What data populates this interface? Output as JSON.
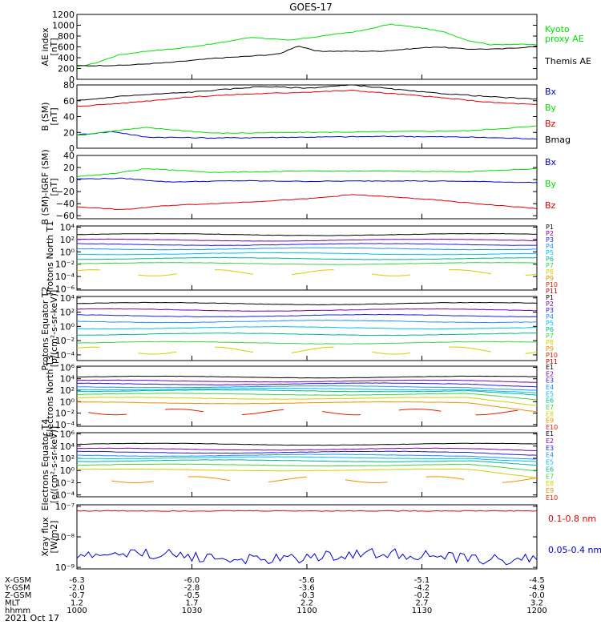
{
  "title": "GOES-17",
  "colors": {
    "black": "#000000",
    "green": "#00e000",
    "red": "#e00000",
    "blue": "#0000d0",
    "P1": "#000000",
    "P2": "#8000a0",
    "P3": "#2020e0",
    "P4": "#2090ff",
    "P5": "#00c0f0",
    "P6": "#00b890",
    "P7": "#40d040",
    "P8": "#d0d000",
    "P9": "#f09000",
    "P10": "#e02000",
    "P11": "#b00000"
  },
  "footer": {
    "rows": [
      {
        "label": "X-GSM",
        "values": [
          "-6.3",
          "-6.0",
          "-5.6",
          "-5.1",
          "-4.5"
        ]
      },
      {
        "label": "Y-GSM",
        "values": [
          "-2.0",
          "-2.8",
          "-3.6",
          "-4.2",
          "-4.9"
        ]
      },
      {
        "label": "Z-GSM",
        "values": [
          "-0.7",
          "-0.5",
          "-0.3",
          "-0.2",
          "-0.0"
        ]
      },
      {
        "label": "MLT",
        "values": [
          "1.2",
          "1.7",
          "2.2",
          "2.7",
          "3.2"
        ]
      },
      {
        "label": "hhmm",
        "values": [
          "1000",
          "1030",
          "1100",
          "1130",
          "1200"
        ]
      }
    ],
    "date": "2021 Oct 17"
  },
  "chart_data": [
    {
      "type": "line",
      "ylabel": "AE index [nT]",
      "ylim": [
        0,
        1200
      ],
      "ytick_labels": [
        "1200",
        "1000",
        "800",
        "600",
        "400",
        "200",
        "0"
      ],
      "x_range_hhmm": [
        "1000",
        "1200"
      ],
      "series": [
        {
          "name": "Kyoto proxy AE",
          "legend": "Kyoto\nproxy AE",
          "color": "green",
          "knots": [
            [
              0,
              230
            ],
            [
              0.04,
              300
            ],
            [
              0.09,
              450
            ],
            [
              0.15,
              520
            ],
            [
              0.22,
              570
            ],
            [
              0.3,
              660
            ],
            [
              0.38,
              780
            ],
            [
              0.46,
              720
            ],
            [
              0.55,
              820
            ],
            [
              0.62,
              900
            ],
            [
              0.68,
              1020
            ],
            [
              0.75,
              950
            ],
            [
              0.8,
              870
            ],
            [
              0.85,
              720
            ],
            [
              0.9,
              640
            ],
            [
              0.95,
              650
            ],
            [
              1,
              640
            ]
          ]
        },
        {
          "name": "Themis AE",
          "legend": "Themis AE",
          "color": "black",
          "knots": [
            [
              0,
              250
            ],
            [
              0.1,
              260
            ],
            [
              0.2,
              310
            ],
            [
              0.3,
              390
            ],
            [
              0.38,
              430
            ],
            [
              0.44,
              470
            ],
            [
              0.48,
              620
            ],
            [
              0.52,
              520
            ],
            [
              0.58,
              520
            ],
            [
              0.66,
              520
            ],
            [
              0.72,
              560
            ],
            [
              0.78,
              600
            ],
            [
              0.85,
              560
            ],
            [
              0.92,
              560
            ],
            [
              1,
              610
            ]
          ]
        }
      ]
    },
    {
      "type": "line",
      "ylabel": "B (SM) [nT]",
      "ylim": [
        0,
        80
      ],
      "ytick_labels": [
        "80",
        "60",
        "40",
        "20",
        "0"
      ],
      "series": [
        {
          "name": "Bx",
          "color": "blue",
          "knots": [
            [
              0,
              17
            ],
            [
              0.08,
              21
            ],
            [
              0.15,
              14
            ],
            [
              0.3,
              13
            ],
            [
              0.5,
              14
            ],
            [
              0.7,
              15
            ],
            [
              0.85,
              14
            ],
            [
              1,
              12
            ]
          ]
        },
        {
          "name": "By",
          "color": "green",
          "knots": [
            [
              0,
              16
            ],
            [
              0.08,
              22
            ],
            [
              0.15,
              26
            ],
            [
              0.3,
              19
            ],
            [
              0.5,
              20
            ],
            [
              0.7,
              21
            ],
            [
              0.85,
              22
            ],
            [
              1,
              28
            ]
          ]
        },
        {
          "name": "Bz",
          "color": "red",
          "knots": [
            [
              0,
              53
            ],
            [
              0.1,
              57
            ],
            [
              0.25,
              65
            ],
            [
              0.35,
              68
            ],
            [
              0.45,
              70
            ],
            [
              0.6,
              73
            ],
            [
              0.75,
              66
            ],
            [
              0.9,
              58
            ],
            [
              1,
              55
            ]
          ]
        },
        {
          "name": "Bmag",
          "color": "black",
          "knots": [
            [
              0,
              60
            ],
            [
              0.1,
              66
            ],
            [
              0.25,
              71
            ],
            [
              0.4,
              78
            ],
            [
              0.5,
              76
            ],
            [
              0.6,
              80
            ],
            [
              0.75,
              71
            ],
            [
              0.9,
              65
            ],
            [
              1,
              62
            ]
          ]
        }
      ]
    },
    {
      "type": "line",
      "ylabel": "B (SM)-IGRF (SM) [nT]",
      "ylim": [
        -65,
        40
      ],
      "yticks": [
        40,
        20,
        0,
        -20,
        -40,
        -60
      ],
      "ytick_labels": [
        "40",
        "20",
        "0",
        "−20",
        "−40",
        "−60"
      ],
      "series": [
        {
          "name": "Bx",
          "color": "blue",
          "knots": [
            [
              0,
              1
            ],
            [
              0.1,
              2
            ],
            [
              0.2,
              -4
            ],
            [
              0.35,
              -2
            ],
            [
              0.5,
              -3
            ],
            [
              0.7,
              -2
            ],
            [
              0.85,
              -3
            ],
            [
              1,
              -5
            ]
          ]
        },
        {
          "name": "By",
          "color": "green",
          "knots": [
            [
              0,
              5
            ],
            [
              0.08,
              10
            ],
            [
              0.15,
              18
            ],
            [
              0.3,
              12
            ],
            [
              0.5,
              14
            ],
            [
              0.7,
              14
            ],
            [
              0.85,
              13
            ],
            [
              1,
              18
            ]
          ]
        },
        {
          "name": "Bz",
          "color": "red",
          "knots": [
            [
              0,
              -45
            ],
            [
              0.1,
              -50
            ],
            [
              0.2,
              -43
            ],
            [
              0.35,
              -38
            ],
            [
              0.5,
              -32
            ],
            [
              0.6,
              -25
            ],
            [
              0.75,
              -32
            ],
            [
              0.9,
              -42
            ],
            [
              1,
              -48
            ]
          ]
        }
      ]
    },
    {
      "type": "line",
      "scale": "log",
      "ylabel": "Protons North T1",
      "ylim": [
        -6.2,
        4.2
      ],
      "yticks": [
        4,
        2,
        0,
        -2,
        -4,
        -6
      ],
      "ytick_labels": [
        "10⁴",
        "10²",
        "10⁰",
        "10⁻²",
        "10⁻⁴",
        "10⁻⁶"
      ],
      "channels": [
        "P1",
        "P2",
        "P3",
        "P4",
        "P5",
        "P6",
        "P7",
        "P8",
        "P9",
        "P10",
        "P11"
      ],
      "series": [
        {
          "name": "P1",
          "log_level": 2.8
        },
        {
          "name": "P2",
          "log_level": 1.9
        },
        {
          "name": "P3",
          "log_level": 1.2
        },
        {
          "name": "P4",
          "log_level": 0.5
        },
        {
          "name": "P5",
          "log_level": -0.3
        },
        {
          "name": "P6",
          "log_level": -1.1
        },
        {
          "name": "P7",
          "log_level": -1.9
        },
        {
          "name": "P8",
          "log_level": -3.4,
          "broken": true
        }
      ]
    },
    {
      "type": "line",
      "scale": "log",
      "ylabel": "Protons Equator T2 [p/(cm²-s-sr-keV)]",
      "ylim": [
        -4.8,
        4.2
      ],
      "yticks": [
        4,
        2,
        0,
        -2,
        -4
      ],
      "ytick_labels": [
        "10⁴",
        "10²",
        "10⁰",
        "10⁻²",
        "10⁻⁴"
      ],
      "channels": [
        "P1",
        "P2",
        "P3",
        "P4",
        "P5",
        "P6",
        "P7",
        "P8",
        "P9",
        "P10",
        "P11"
      ],
      "series": [
        {
          "name": "P1",
          "log_level": 3.2
        },
        {
          "name": "P2",
          "log_level": 2.3
        },
        {
          "name": "P3",
          "log_level": 1.5
        },
        {
          "name": "P4",
          "log_level": 0.7
        },
        {
          "name": "P5",
          "log_level": -0.2
        },
        {
          "name": "P6",
          "log_level": -1.1
        },
        {
          "name": "P7",
          "log_level": -2.3
        },
        {
          "name": "P8",
          "log_level": -3.4,
          "broken": true
        }
      ]
    },
    {
      "type": "line",
      "scale": "log",
      "ylabel": "Electrons North T3",
      "ylim": [
        -4.3,
        6.2
      ],
      "yticks": [
        6,
        4,
        2,
        0,
        -2,
        -4
      ],
      "ytick_labels": [
        "10⁶",
        "10⁴",
        "10²",
        "10⁰",
        "10⁻²",
        "10⁻⁴"
      ],
      "channels": [
        "E1",
        "E2",
        "E3",
        "E4",
        "E5",
        "E6",
        "E7",
        "E8",
        "E9",
        "E10"
      ],
      "series": [
        {
          "name": "E1",
          "log_level": 4.3
        },
        {
          "name": "E2",
          "log_level": 3.6
        },
        {
          "name": "E3",
          "log_level": 3.1
        },
        {
          "name": "E4",
          "log_level": 2.6
        },
        {
          "name": "E5",
          "log_level": 2.2
        },
        {
          "name": "E6",
          "log_level": 1.9
        },
        {
          "name": "E7",
          "log_level": 1.3
        },
        {
          "name": "E8",
          "log_level": 0.6
        },
        {
          "name": "E9",
          "log_level": -0.2
        },
        {
          "name": "E10",
          "log_level": -1.8,
          "broken": true
        }
      ]
    },
    {
      "type": "line",
      "scale": "log",
      "ylabel": "Electrons Equator T4 [e/(cm²-s-sr-keV)]",
      "ylim": [
        -4.3,
        6.2
      ],
      "yticks": [
        6,
        4,
        2,
        0,
        -2,
        -4
      ],
      "ytick_labels": [
        "10⁶",
        "10⁴",
        "10²",
        "10⁰",
        "10⁻²",
        "10⁻⁴"
      ],
      "channels": [
        "E1",
        "E2",
        "E3",
        "E4",
        "E5",
        "E6",
        "E7",
        "E8",
        "E9",
        "E10"
      ],
      "series": [
        {
          "name": "E1",
          "log_level": 4.3
        },
        {
          "name": "E2",
          "log_level": 3.5
        },
        {
          "name": "E3",
          "log_level": 3.0
        },
        {
          "name": "E4",
          "log_level": 2.5
        },
        {
          "name": "E5",
          "log_level": 2.1
        },
        {
          "name": "E6",
          "log_level": 1.6
        },
        {
          "name": "E7",
          "log_level": 0.9
        },
        {
          "name": "E8",
          "log_level": 0.1
        },
        {
          "name": "E9",
          "log_level": -1.5,
          "broken": true
        }
      ]
    },
    {
      "type": "line",
      "scale": "log",
      "ylabel": "Xray flux [W/m2]",
      "ylim": [
        -9.05,
        -6.95
      ],
      "yticks": [
        -7,
        -8,
        -9
      ],
      "ytick_labels": [
        "10⁻⁷",
        "10⁻⁸",
        "10⁻⁹"
      ],
      "series": [
        {
          "name": "0.1-0.8 nm",
          "color": "red",
          "log_level": -7.15
        },
        {
          "name": "0.05-0.4 nm",
          "color": "blue",
          "log_level": -8.65
        }
      ]
    }
  ]
}
